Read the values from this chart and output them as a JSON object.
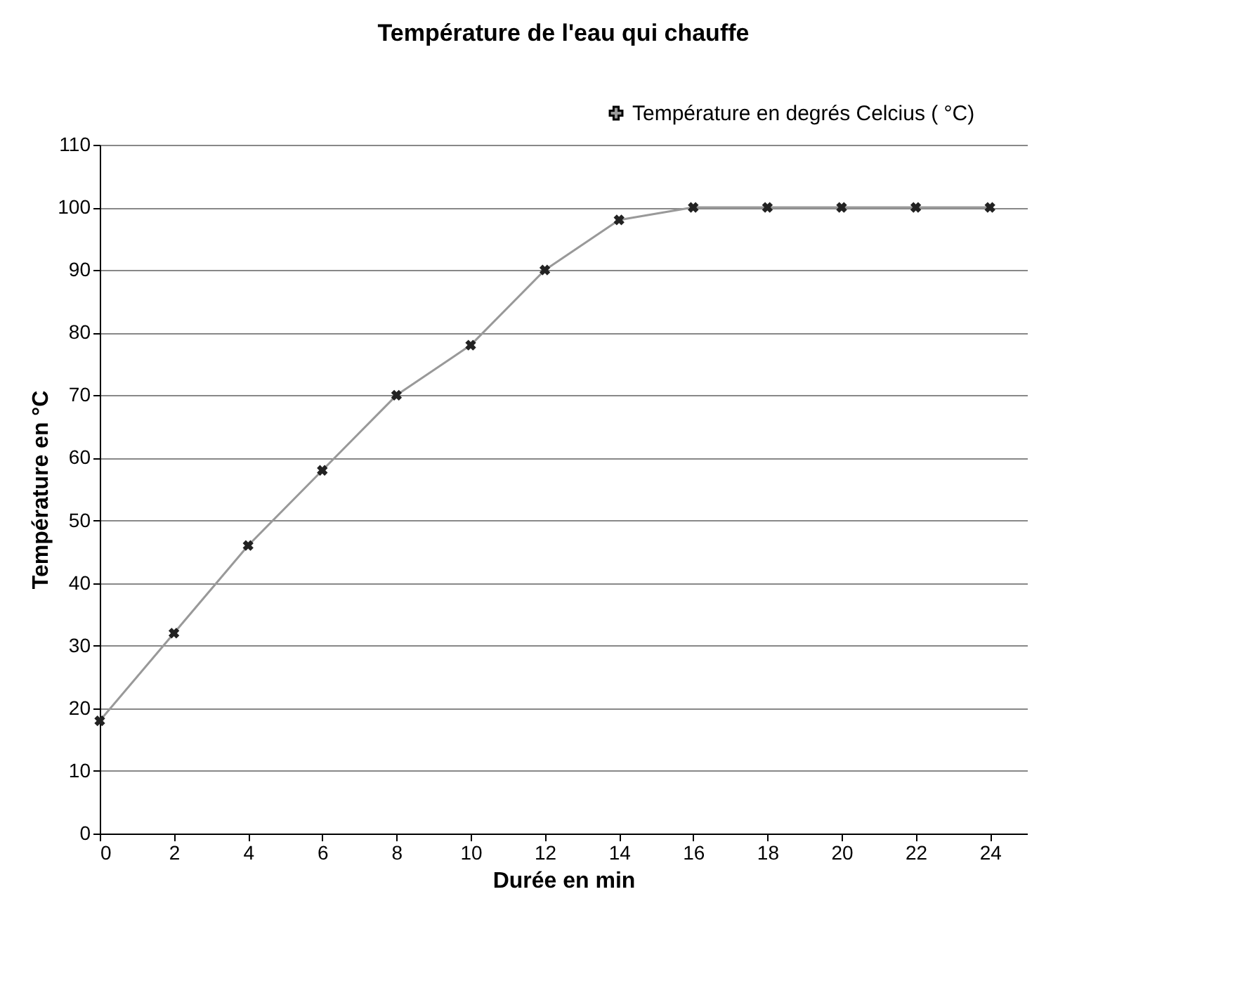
{
  "chart_data": {
    "type": "line",
    "title": "Température de l'eau qui chauffe",
    "xlabel": "Durée en min",
    "ylabel": "Température en °C",
    "x": [
      0,
      2,
      4,
      6,
      8,
      10,
      12,
      14,
      16,
      18,
      20,
      22,
      24
    ],
    "series": [
      {
        "name": "Température en degrés Celcius ( °C)",
        "color": "#999999",
        "values": [
          18,
          32,
          46,
          58,
          70,
          78,
          90,
          98,
          100,
          100,
          100,
          100,
          100
        ]
      }
    ],
    "xlim": [
      0,
      25
    ],
    "xticks": [
      0,
      2,
      4,
      6,
      8,
      10,
      12,
      14,
      16,
      18,
      20,
      22,
      24
    ],
    "ylim": [
      0,
      110
    ],
    "yticks": [
      0,
      10,
      20,
      30,
      40,
      50,
      60,
      70,
      80,
      90,
      100,
      110
    ],
    "grid": "y",
    "legend": "top right",
    "marker": "cross",
    "line_style": "solid"
  }
}
